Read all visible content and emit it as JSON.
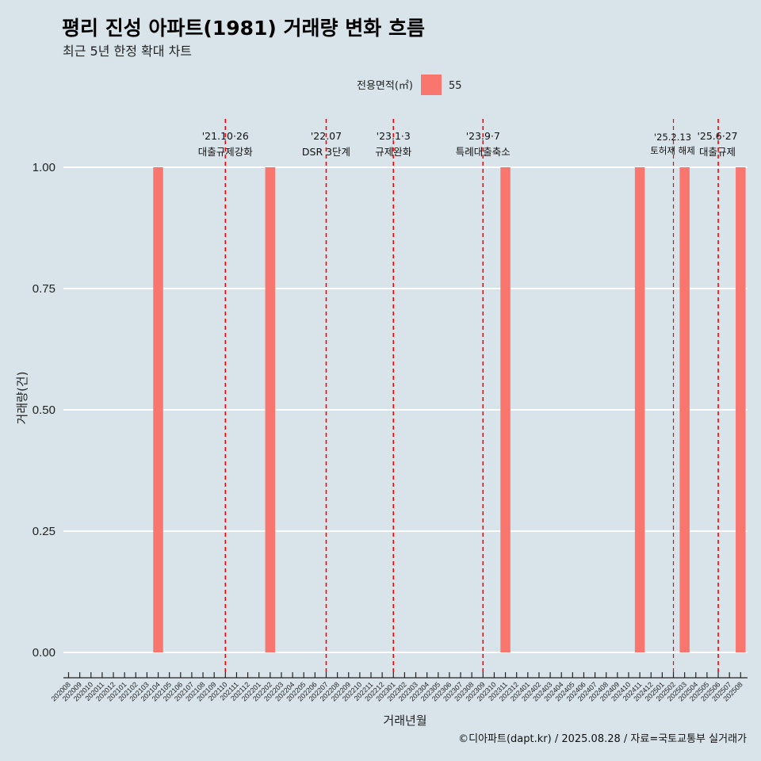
{
  "header": {
    "title": "평리 진성 아파트(1981) 거래량 변화 흐름",
    "subtitle": "최근 5년 한정 확대 차트"
  },
  "legend": {
    "title": "전용면적(㎡)",
    "items": [
      {
        "label": "55",
        "color": "#f8766d"
      }
    ]
  },
  "caption": "©디아파트(dapt.kr) / 2025.08.28 / 자료=국토교통부 실거래가",
  "colors": {
    "background": "#d9e4ea",
    "bar": "#f8766d",
    "event_line": "#ff0000",
    "grid": "#ffffff"
  },
  "chart_data": {
    "type": "bar",
    "xlabel": "거래년월",
    "ylabel": "거래량(건)",
    "ylim": [
      0,
      1
    ],
    "yticks": [
      "0.00",
      "0.25",
      "0.50",
      "0.75",
      "1.00"
    ],
    "categories": [
      "202008",
      "202009",
      "202010",
      "202011",
      "202012",
      "202101",
      "202102",
      "202103",
      "202104",
      "202105",
      "202106",
      "202107",
      "202108",
      "202109",
      "202110",
      "202111",
      "202112",
      "202201",
      "202202",
      "202203",
      "202204",
      "202205",
      "202206",
      "202207",
      "202208",
      "202209",
      "202210",
      "202211",
      "202212",
      "202301",
      "202302",
      "202303",
      "202304",
      "202305",
      "202306",
      "202307",
      "202308",
      "202309",
      "202310",
      "202311",
      "202312",
      "202401",
      "202402",
      "202403",
      "202404",
      "202405",
      "202406",
      "202407",
      "202408",
      "202409",
      "202410",
      "202411",
      "202412",
      "202501",
      "202502",
      "202503",
      "202504",
      "202505",
      "202506",
      "202507",
      "202508"
    ],
    "series": [
      {
        "name": "55",
        "values": [
          0,
          0,
          0,
          0,
          0,
          0,
          0,
          0,
          1,
          0,
          0,
          0,
          0,
          0,
          0,
          0,
          0,
          0,
          1,
          0,
          0,
          0,
          0,
          0,
          0,
          0,
          0,
          0,
          0,
          0,
          0,
          0,
          0,
          0,
          0,
          0,
          0,
          0,
          0,
          1,
          0,
          0,
          0,
          0,
          0,
          0,
          0,
          0,
          0,
          0,
          0,
          1,
          0,
          0,
          0,
          1,
          0,
          0,
          0,
          0,
          1
        ]
      }
    ],
    "events": [
      {
        "position": "202110",
        "date_label": "'21.10·26",
        "desc": "대출규제강화"
      },
      {
        "position": "202207",
        "date_label": "'22.07",
        "desc": "DSR 3단계"
      },
      {
        "position": "202301",
        "date_label": "'23.1·3",
        "desc": "규제완화"
      },
      {
        "position": "202309",
        "date_label": "'23.9·7",
        "desc": "특례대출축소"
      },
      {
        "position": "202502",
        "date_label": "'25.2.13",
        "desc": "토허제 해제"
      },
      {
        "position": "202506",
        "date_label": "'25.6·27",
        "desc": "대출규제"
      }
    ],
    "grid": true,
    "legend_position": "top"
  }
}
